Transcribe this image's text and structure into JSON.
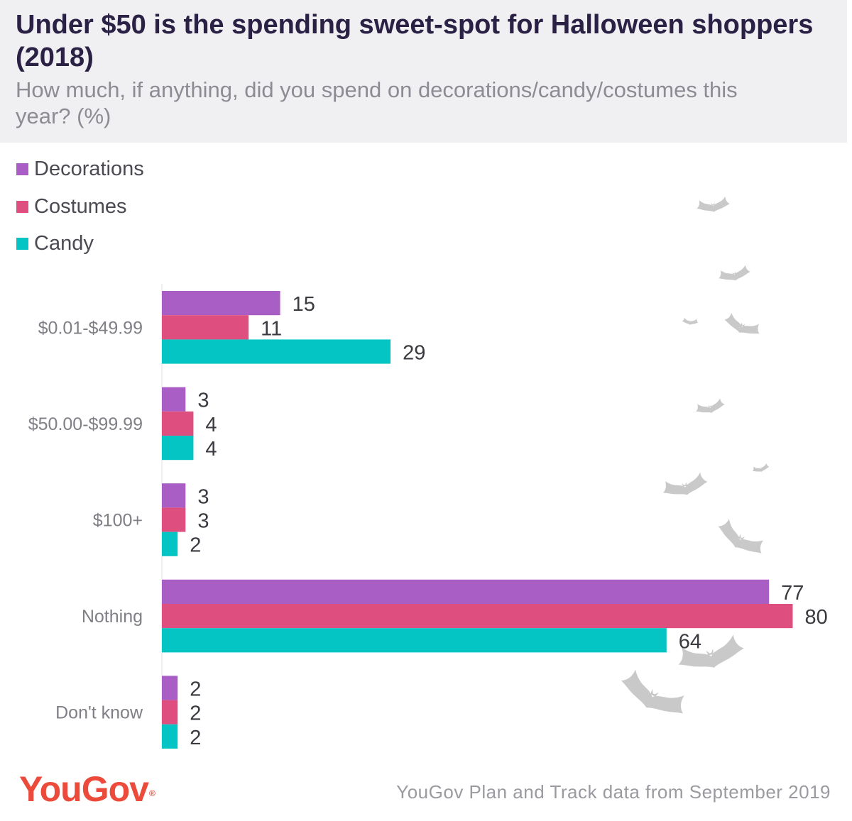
{
  "header": {
    "title": "Under $50 is the spending sweet-spot for Halloween shoppers (2018)",
    "subtitle": "How much, if anything, did you spend on decorations/candy/costumes this year? (%)"
  },
  "footer": {
    "brand": "YouGov",
    "brand_mark": "®",
    "source": "YouGov Plan  and Track data  from September 2019"
  },
  "decoration": {
    "icon": "bat-icon",
    "color": "#c9c9c9"
  },
  "chart_data": {
    "type": "bar",
    "orientation": "horizontal",
    "title": "Under $50 is the spending sweet-spot for Halloween shoppers (2018)",
    "subtitle": "How much, if anything, did you spend on decorations/candy/costumes this year? (%)",
    "xlabel": "",
    "ylabel": "",
    "xlim": [
      0,
      80
    ],
    "grid": false,
    "legend": "top-left",
    "categories": [
      "$0.01-$49.99",
      "$50.00-$99.99",
      "$100+",
      "Nothing",
      "Don't know"
    ],
    "series": [
      {
        "name": "Decorations",
        "color": "#a85ec5",
        "values": [
          15,
          3,
          3,
          77,
          2
        ]
      },
      {
        "name": "Costumes",
        "color": "#de4f80",
        "values": [
          11,
          4,
          3,
          80,
          2
        ]
      },
      {
        "name": "Candy",
        "color": "#05c4c4",
        "values": [
          29,
          4,
          2,
          64,
          2
        ]
      }
    ]
  }
}
